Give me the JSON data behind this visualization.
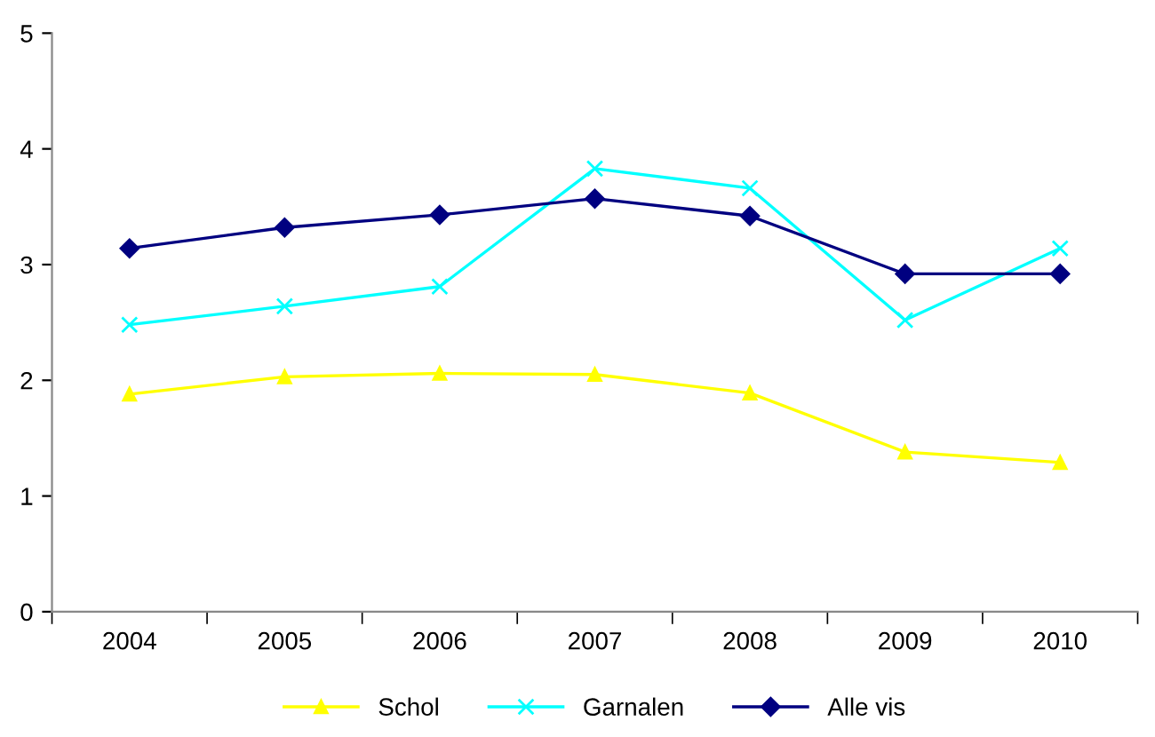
{
  "chart_data": {
    "type": "line",
    "categories": [
      "2004",
      "2005",
      "2006",
      "2007",
      "2008",
      "2009",
      "2010"
    ],
    "series": [
      {
        "name": "Schol",
        "color": "#ffff00",
        "marker": "triangle",
        "values": [
          1.88,
          2.03,
          2.06,
          2.05,
          1.89,
          1.38,
          1.29
        ]
      },
      {
        "name": "Garnalen",
        "color": "#00ffff",
        "marker": "cross",
        "values": [
          2.48,
          2.64,
          2.81,
          3.83,
          3.66,
          2.52,
          3.14
        ]
      },
      {
        "name": "Alle vis",
        "color": "#000080",
        "marker": "diamond",
        "values": [
          3.14,
          3.32,
          3.43,
          3.57,
          3.42,
          2.92,
          2.92
        ]
      }
    ],
    "ylim": [
      0,
      5
    ],
    "yticks": [
      0,
      1,
      2,
      3,
      4,
      5
    ],
    "grid": false,
    "legend": "bottom",
    "line_style": "solid"
  }
}
